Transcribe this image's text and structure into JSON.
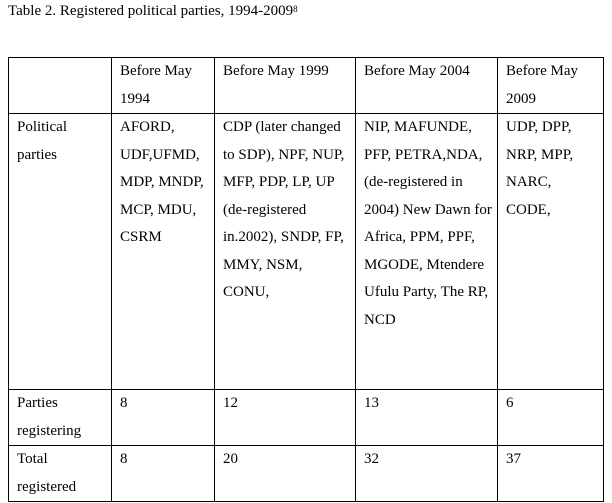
{
  "caption": {
    "text": "Table 2.  Registered political parties, 1994-2009",
    "footnote_mark": "8"
  },
  "table": {
    "header": [
      "",
      "Before May 1994",
      "Before May 1999",
      "Before May 2004",
      "Before May 2009"
    ],
    "rows": [
      {
        "label": "Political parties",
        "cells": [
          "AFORD, UDF,UFMD, MDP, MNDP, MCP, MDU, CSRM",
          "CDP (later changed to SDP), NPF, NUP, MFP, PDP, LP, UP (de-registered in.2002), SNDP, FP, MMY, NSM, CONU,",
          "NIP, MAFUNDE, PFP, PETRA,NDA, (de-registered in 2004) New Dawn for Africa, PPM, PPF, MGODE, Mtendere Ufulu Party, The RP, NCD",
          "UDP, DPP, NRP, MPP, NARC, CODE,"
        ]
      },
      {
        "label": "Parties registering",
        "cells": [
          "8",
          "12",
          "13",
          "6"
        ]
      },
      {
        "label": "Total registered",
        "cells": [
          "8",
          "20",
          "32",
          "37"
        ]
      }
    ]
  }
}
